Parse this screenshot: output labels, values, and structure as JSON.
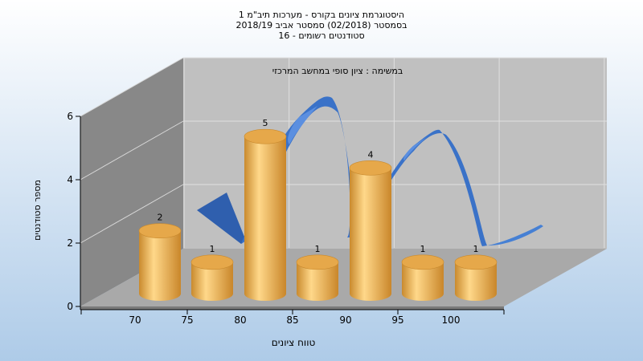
{
  "title_lines": [
    "היסטוגרמת ציונים בקורס - מערכות תיב\"מ 1",
    "בסמסטר  (02/2018)  סמסטר אביב 2018/19",
    "סטודנטים רשומים - 16"
  ],
  "colors": {
    "background_top": "#ffffff",
    "background_bottom": "#aecbe8",
    "back_wall": "#c0c0c0",
    "side_wall": "#808080",
    "floor": "#a8a8a8",
    "bar": "#e8a848",
    "curve": "#3a72c8"
  },
  "chart_data": {
    "type": "bar",
    "title": "היסטוגרמת ציונים בקורס - מערכות תיב\"מ 1",
    "annotation": "במשימה : ציון סופי במחשב המרכזי",
    "xlabel": "טווח ציונים",
    "ylabel": "מספר סטודנטים",
    "x_tick_labels": [
      "70",
      "75",
      "80",
      "85",
      "90",
      "95",
      "100"
    ],
    "y_tick_labels": [
      "0",
      "2",
      "4",
      "6"
    ],
    "ylim": [
      0,
      6
    ],
    "grid": true,
    "series": [
      {
        "values": [
          2,
          1,
          5,
          1,
          4,
          1,
          1
        ]
      }
    ],
    "data_labels": [
      "2",
      "1",
      "5",
      "1",
      "4",
      "1",
      "1"
    ]
  }
}
